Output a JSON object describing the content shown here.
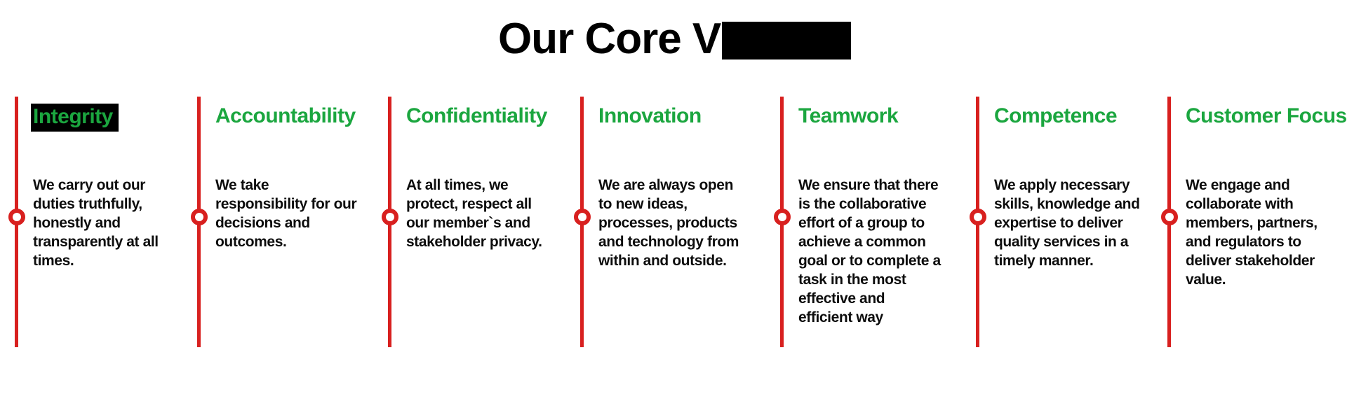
{
  "title": {
    "text": "Our Core V",
    "redaction_note": "redacted-black-box"
  },
  "colors": {
    "green": "#1ba63f",
    "red": "#d8201f",
    "highlight_bg": "#000000"
  },
  "values": [
    {
      "heading": "Integrity",
      "highlighted": true,
      "body": "We carry out our\nduties truthfully,\nhonestly and\ntransparently at all\ntimes."
    },
    {
      "heading": "Accountability",
      "highlighted": false,
      "body": "We take\nresponsibility for our\ndecisions and\noutcomes."
    },
    {
      "heading": "Confidentiality",
      "highlighted": false,
      "body": "At all times, we\nprotect, respect all\nour member`s and\nstakeholder privacy."
    },
    {
      "heading": "Innovation",
      "highlighted": false,
      "body": "We are always open\nto new ideas,\nprocesses, products\nand technology from\nwithin and outside."
    },
    {
      "heading": "Teamwork",
      "highlighted": false,
      "body": "We ensure that there\nis the collaborative\neffort of a group to\nachieve a common\ngoal or to complete a\ntask in the most\neffective and\nefficient way"
    },
    {
      "heading": "Competence",
      "highlighted": false,
      "body": "We apply necessary\nskills, knowledge and\nexpertise to deliver\nquality services in a\ntimely manner."
    },
    {
      "heading": "Customer Focus",
      "highlighted": false,
      "body": "We engage and\ncollaborate with\nmembers, partners,\nand regulators to\ndeliver stakeholder\nvalue."
    }
  ]
}
